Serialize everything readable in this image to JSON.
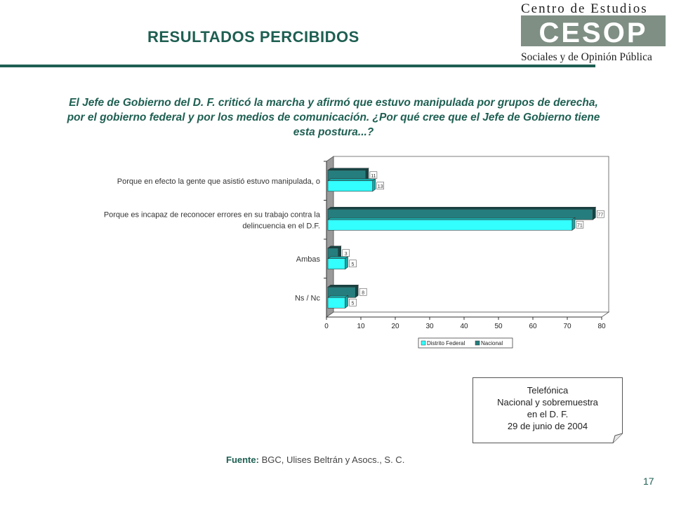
{
  "header": {
    "title": "RESULTADOS PERCIBIDOS",
    "logo": {
      "line1": "Centro de Estudios",
      "acronym": "CESOP",
      "line2": "Sociales y de Opinión Pública"
    }
  },
  "question": "El Jefe de Gobierno del D. F. criticó la marcha y afirmó que estuvo manipulada por grupos de derecha, por el gobierno federal y por los medios de comunicación. ¿Por qué cree que el Jefe de Gobierno tiene esta postura...?",
  "chart_data": {
    "type": "bar",
    "orientation": "horizontal",
    "categories": [
      "Porque en efecto la gente que asistió estuvo manipulada, o",
      "Porque es incapaz de reconocer errores en su trabajo contra la delincuencia en el D.F.",
      "Ambas",
      "Ns / Nc"
    ],
    "category_lines": [
      [
        "Porque en efecto la gente que asistió estuvo manipulada, o"
      ],
      [
        "Porque es incapaz de reconocer errores en su trabajo contra la",
        "delincuencia en el D.F."
      ],
      [
        "Ambas"
      ],
      [
        "Ns / Nc"
      ]
    ],
    "series": [
      {
        "name": "Distrito Federal",
        "values": [
          13,
          71,
          5,
          5
        ],
        "labels": [
          "13",
          "71",
          "5",
          "5"
        ]
      },
      {
        "name": "Nacional",
        "values": [
          11,
          77,
          3,
          8
        ],
        "labels": [
          "11",
          "77",
          "3",
          "8"
        ]
      }
    ],
    "xlim": [
      0,
      80
    ],
    "xticks": [
      "0",
      "10",
      "20",
      "30",
      "40",
      "50",
      "60",
      "70",
      "80"
    ],
    "legend_position": "bottom",
    "grid": false,
    "colors": {
      "Distrito Federal": "#33ffff",
      "Nacional": "#267d7d"
    }
  },
  "note": {
    "lines": [
      "Telefónica",
      "Nacional y sobremuestra",
      "en el D. F.",
      "29 de junio de 2004"
    ]
  },
  "source": {
    "label": "Fuente:",
    "text": "BGC, Ulises Beltrán y Asocs., S. C."
  },
  "page_number": "17"
}
